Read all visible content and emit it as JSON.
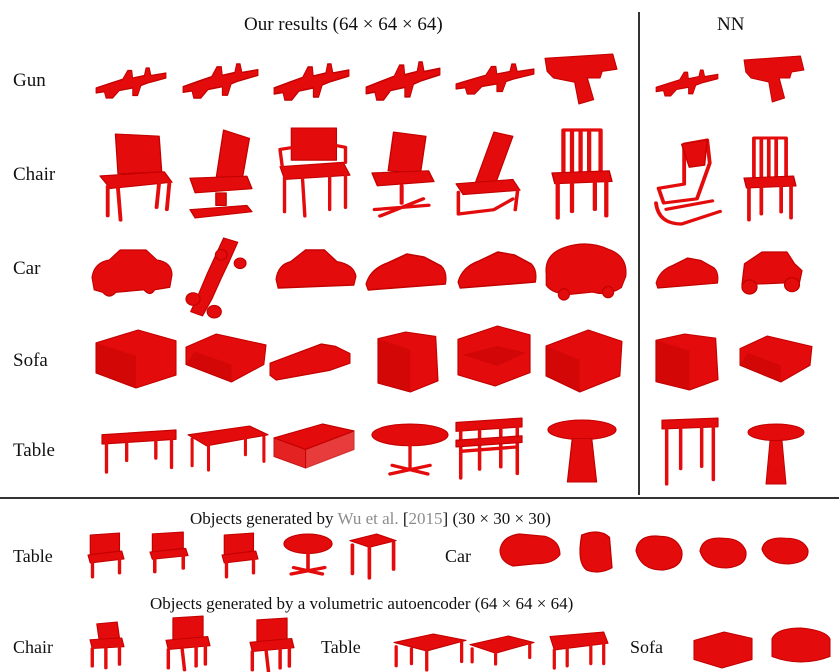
{
  "top": {
    "title_main": "Our results (64 × 64 × 64)",
    "title_nn": "NN",
    "rows": [
      {
        "label": "Gun"
      },
      {
        "label": "Chair"
      },
      {
        "label": "Car"
      },
      {
        "label": "Sofa"
      },
      {
        "label": "Table"
      }
    ]
  },
  "wu": {
    "caption_prefix": "Objects generated by",
    "caption_cite_name": "Wu et al.",
    "caption_bracket_open": "[",
    "caption_cite_year": "2015",
    "caption_bracket_close": "]",
    "caption_suffix": "(30 × 30 × 30)",
    "label_table": "Table",
    "label_car": "Car"
  },
  "vae": {
    "caption": "Objects generated by a volumetric autoencoder (64 × 64 × 64)",
    "label_chair": "Chair",
    "label_table": "Table",
    "label_sofa": "Sofa"
  },
  "colors": {
    "shape_red": "#e30b0b",
    "citation_gray": "#8c8c8c",
    "rule_line": "#333333"
  },
  "icons": {
    "gun": "rifle-shape",
    "pistol": "pistol-shape",
    "chair": "chair-shape",
    "car": "car-shape",
    "sofa": "sofa-shape",
    "table": "table-shape",
    "round_table": "round-table-shape"
  }
}
